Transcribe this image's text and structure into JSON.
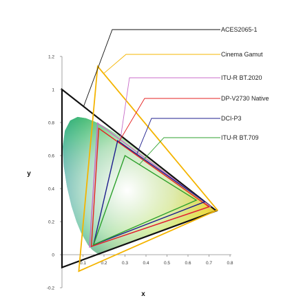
{
  "chart_data": {
    "type": "line",
    "title": "",
    "xlabel": "x",
    "ylabel": "y",
    "xlim": [
      0,
      0.8
    ],
    "ylim": [
      -0.2,
      1.2
    ],
    "x_ticks": [
      {
        "value": 0.1,
        "label": "0.1"
      },
      {
        "value": 0.2,
        "label": "0.2"
      },
      {
        "value": 0.3,
        "label": "0.3"
      },
      {
        "value": 0.4,
        "label": "0.4"
      },
      {
        "value": 0.5,
        "label": "0.5"
      },
      {
        "value": 0.6,
        "label": "0.6"
      },
      {
        "value": 0.7,
        "label": "0.7"
      },
      {
        "value": 0.8,
        "label": "0.8"
      }
    ],
    "y_ticks": [
      {
        "value": -0.2,
        "label": "-0.2"
      },
      {
        "value": 0,
        "label": "0"
      },
      {
        "value": 0.2,
        "label": "0.2"
      },
      {
        "value": 0.4,
        "label": "0.4"
      },
      {
        "value": 0.6,
        "label": "0.6"
      },
      {
        "value": 0.8,
        "label": "0.8"
      },
      {
        "value": 1,
        "label": "1"
      },
      {
        "value": 1.2,
        "label": "1.2"
      }
    ],
    "grid": false,
    "legend": "top-right callouts",
    "series": [
      {
        "name": "ACES2065-1",
        "color": "#111111",
        "points": [
          [
            0.7347,
            0.2653
          ],
          [
            0.0,
            1.0
          ],
          [
            0.0001,
            -0.077
          ]
        ]
      },
      {
        "name": "Cinema Gamut",
        "color": "#f4b400",
        "points": [
          [
            0.74,
            0.27
          ],
          [
            0.17,
            1.14
          ],
          [
            0.08,
            -0.1
          ]
        ]
      },
      {
        "name": "ITU-R BT.2020",
        "color": "#c86bc8",
        "points": [
          [
            0.708,
            0.292
          ],
          [
            0.17,
            0.797
          ],
          [
            0.131,
            0.046
          ]
        ]
      },
      {
        "name": "DP-V2730 Native",
        "color": "#e52020",
        "points": [
          [
            0.7,
            0.29
          ],
          [
            0.175,
            0.765
          ],
          [
            0.14,
            0.05
          ]
        ]
      },
      {
        "name": "DCI-P3",
        "color": "#1c1c8c",
        "points": [
          [
            0.68,
            0.32
          ],
          [
            0.265,
            0.69
          ],
          [
            0.15,
            0.06
          ]
        ]
      },
      {
        "name": "ITU-R BT.709",
        "color": "#2ca02c",
        "points": [
          [
            0.64,
            0.33
          ],
          [
            0.3,
            0.6
          ],
          [
            0.15,
            0.06
          ]
        ]
      }
    ],
    "locus": [
      [
        0.1741,
        0.005
      ],
      [
        0.17,
        0.007
      ],
      [
        0.1644,
        0.0109
      ],
      [
        0.1566,
        0.0177
      ],
      [
        0.144,
        0.0297
      ],
      [
        0.1241,
        0.0578
      ],
      [
        0.0913,
        0.1327
      ],
      [
        0.0687,
        0.2007
      ],
      [
        0.0454,
        0.295
      ],
      [
        0.0235,
        0.4127
      ],
      [
        0.0082,
        0.5384
      ],
      [
        0.0039,
        0.6548
      ],
      [
        0.0139,
        0.7502
      ],
      [
        0.0389,
        0.812
      ],
      [
        0.0743,
        0.8338
      ],
      [
        0.1142,
        0.8262
      ],
      [
        0.1547,
        0.8059
      ],
      [
        0.1929,
        0.7816
      ],
      [
        0.2296,
        0.7543
      ],
      [
        0.2658,
        0.7243
      ],
      [
        0.3016,
        0.6923
      ],
      [
        0.3373,
        0.6589
      ],
      [
        0.3731,
        0.6245
      ],
      [
        0.4087,
        0.5896
      ],
      [
        0.4441,
        0.5547
      ],
      [
        0.4788,
        0.5202
      ],
      [
        0.5125,
        0.4866
      ],
      [
        0.5448,
        0.4544
      ],
      [
        0.5752,
        0.4242
      ],
      [
        0.6029,
        0.3965
      ],
      [
        0.627,
        0.3725
      ],
      [
        0.6482,
        0.3514
      ],
      [
        0.6658,
        0.334
      ],
      [
        0.6801,
        0.3197
      ],
      [
        0.6915,
        0.3083
      ],
      [
        0.7006,
        0.2993
      ],
      [
        0.7079,
        0.292
      ],
      [
        0.714,
        0.2859
      ],
      [
        0.719,
        0.2809
      ],
      [
        0.723,
        0.277
      ],
      [
        0.7347,
        0.2653
      ]
    ]
  }
}
